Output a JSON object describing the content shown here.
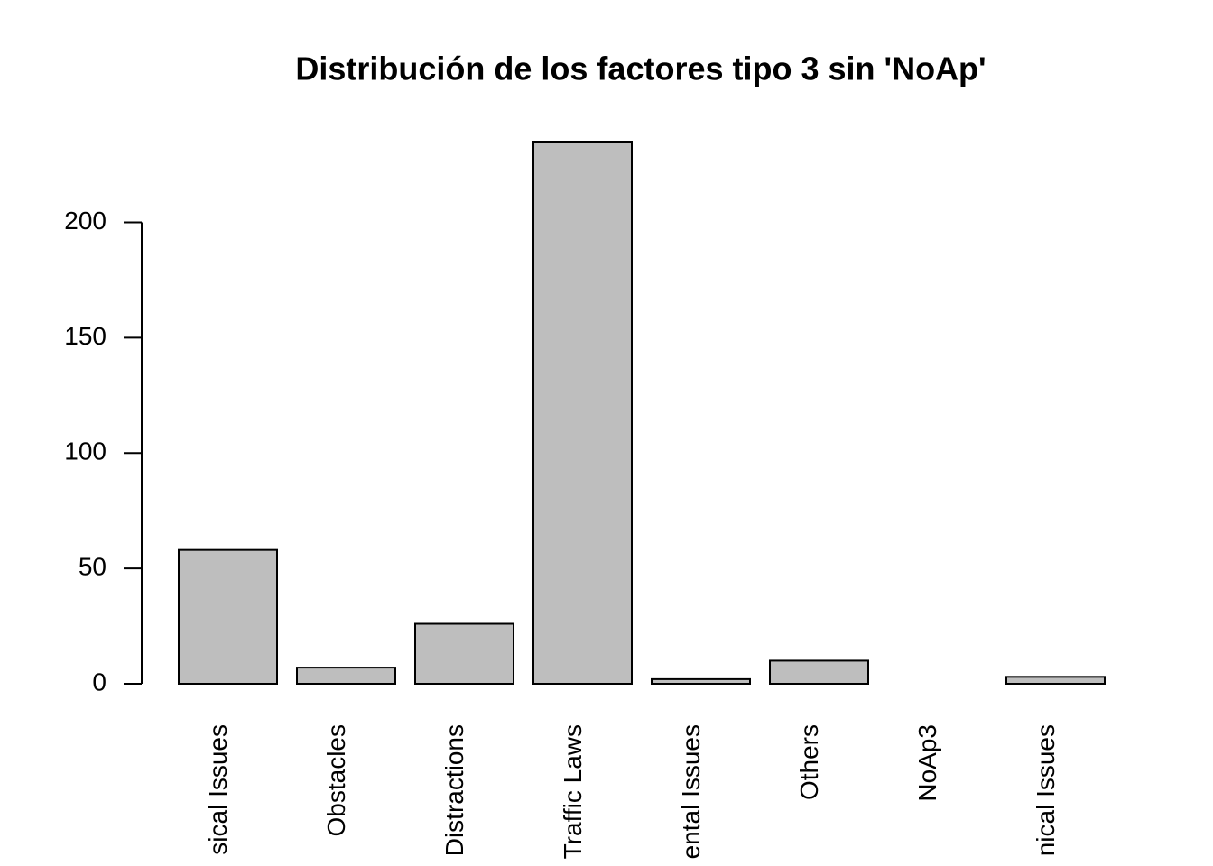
{
  "chart_data": {
    "type": "bar",
    "title": "Distribución de los factores tipo 3 sin 'NoAp'",
    "categories": [
      "sical Issues",
      "Obstacles",
      "Distractions",
      "Traffic Laws",
      "ental Issues",
      "Others",
      "NoAp3",
      "nical Issues"
    ],
    "values": [
      58,
      7,
      26,
      235,
      2,
      10,
      0,
      3
    ],
    "color": "#bebebe",
    "ylim": [
      0,
      235
    ],
    "yticks": [
      0,
      50,
      100,
      150,
      200
    ]
  }
}
